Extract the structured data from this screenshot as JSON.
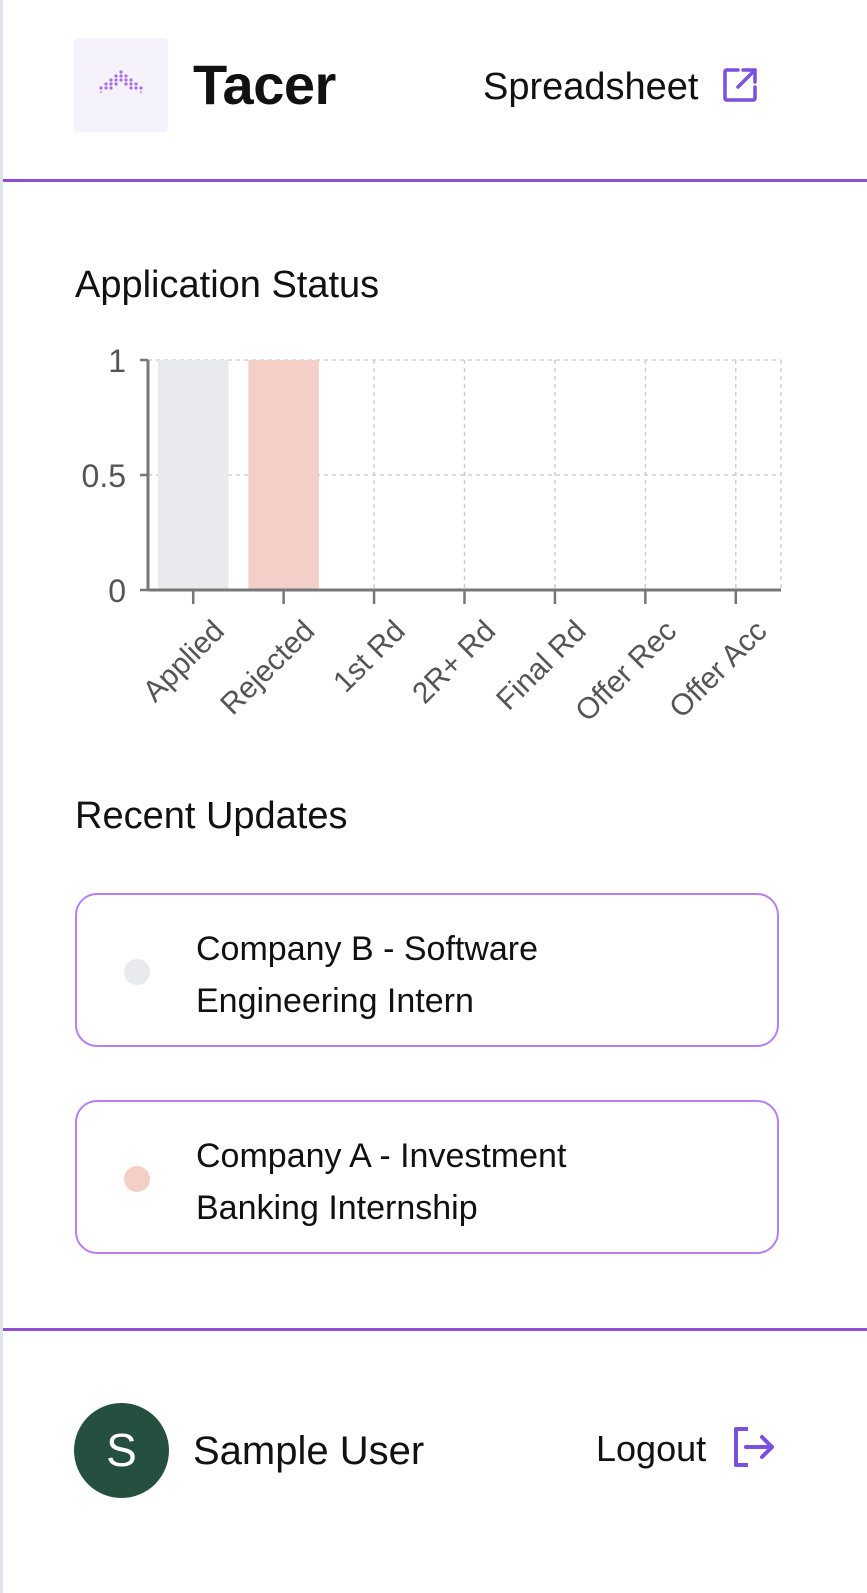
{
  "app": {
    "brand": "Tacer",
    "logo_icon": "tacer-logo-icon"
  },
  "header": {
    "spreadsheet_label": "Spreadsheet",
    "spreadsheet_icon": "external-link-icon"
  },
  "colors": {
    "accent": "#9b51e0",
    "icon_purple": "#7b4fe0",
    "applied": "#e8eaee",
    "rejected": "#f3cfc8",
    "avatar": "#25503f"
  },
  "sections": {
    "chart_title": "Application Status",
    "updates_title": "Recent Updates"
  },
  "chart_data": {
    "type": "bar",
    "title": "Application Status",
    "xlabel": "",
    "ylabel": "",
    "categories": [
      "Applied",
      "Rejected",
      "1st Rd",
      "2R+ Rd",
      "Final Rd",
      "Offer Rec",
      "Offer Acc"
    ],
    "values": [
      1,
      1,
      0,
      0,
      0,
      0,
      0
    ],
    "colors": [
      "#e8eaee",
      "#f3cfc8",
      "#e8eaee",
      "#e8eaee",
      "#e8eaee",
      "#e8eaee",
      "#e8eaee"
    ],
    "ylim": [
      0,
      1
    ],
    "yticks": [
      0,
      0.5,
      1
    ],
    "ytick_labels": [
      "0",
      "0.5",
      "1"
    ],
    "grid": true
  },
  "updates": [
    {
      "line1": "Company B - Software",
      "line2": "Engineering Intern",
      "status_color": "#e8eaee"
    },
    {
      "line1": "Company A - Investment",
      "line2": "Banking Internship",
      "status_color": "#f3cfc8"
    }
  ],
  "footer": {
    "avatar_initial": "S",
    "user_name": "Sample User",
    "logout_label": "Logout",
    "logout_icon": "logout-icon"
  }
}
